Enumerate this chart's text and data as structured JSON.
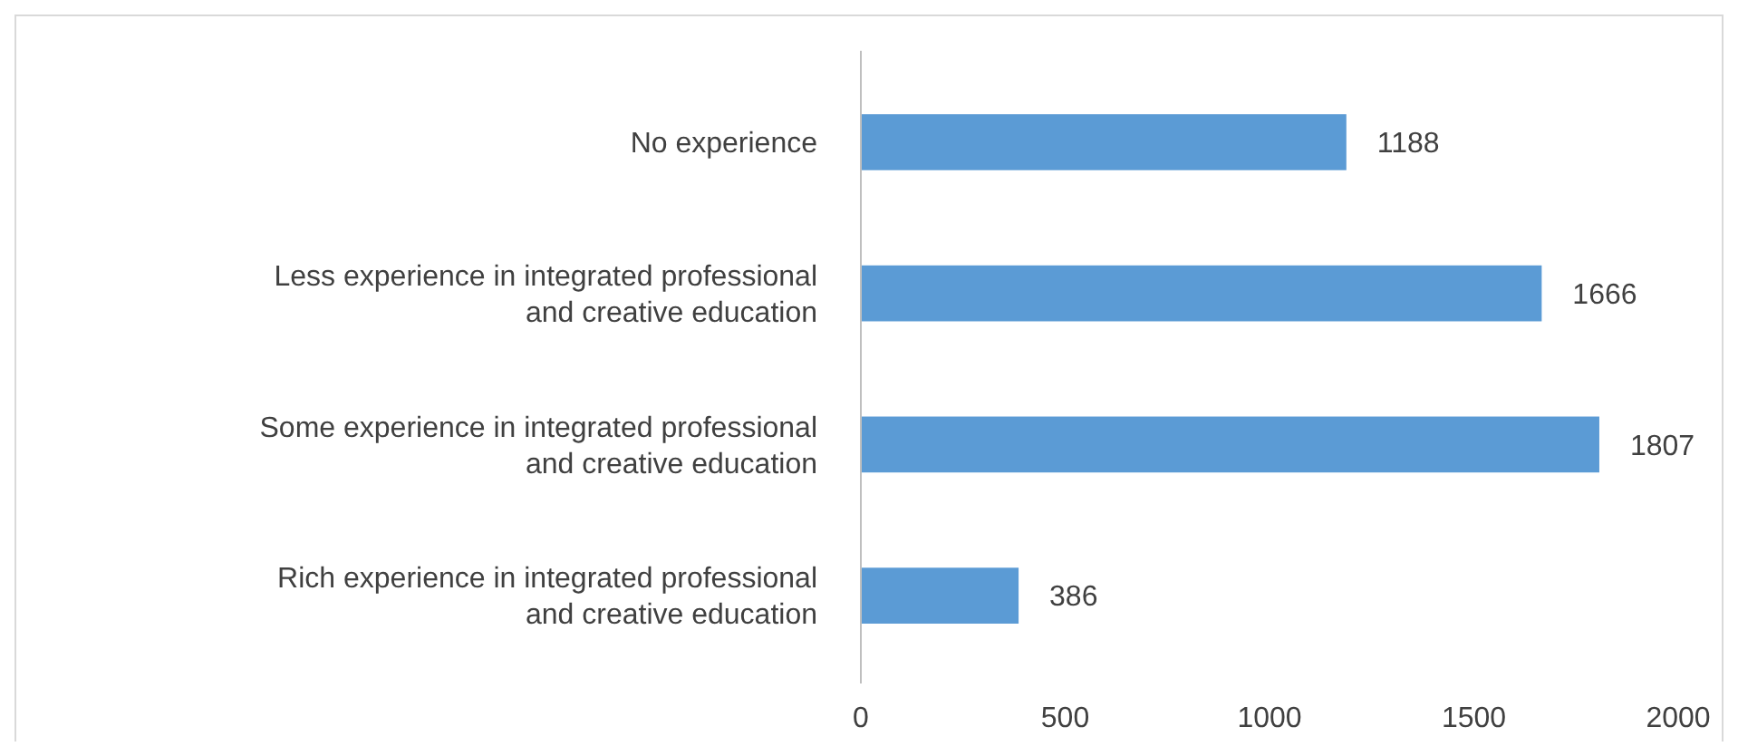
{
  "chart_data": {
    "type": "bar",
    "orientation": "horizontal",
    "categories": [
      "No experience",
      "Less experience in integrated professional and creative education",
      "Some experience in integrated professional and creative education",
      "Rich experience in integrated professional and creative education"
    ],
    "values": [
      1188,
      1666,
      1807,
      386
    ],
    "color": "#5b9bd5",
    "xlim": [
      0,
      2000
    ],
    "xticks": [
      0,
      500,
      1000,
      1500,
      2000
    ],
    "grid": false,
    "data_labels": true
  }
}
